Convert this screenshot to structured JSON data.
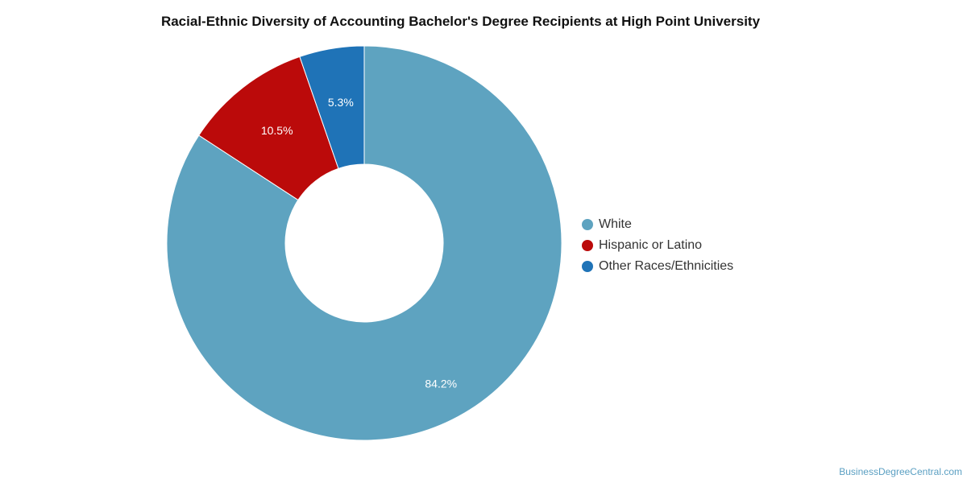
{
  "chart_data": {
    "type": "pie",
    "variant": "donut",
    "title": "Racial-Ethnic Diversity of Accounting Bachelor's Degree Recipients at High Point University",
    "categories": [
      "White",
      "Hispanic or Latino",
      "Other Races/Ethnicities"
    ],
    "values": [
      84.2,
      10.5,
      5.3
    ],
    "value_labels": [
      "84.2%",
      "10.5%",
      "5.3%"
    ],
    "colors": [
      "#5ea3c0",
      "#bb0a0a",
      "#1f73b7"
    ],
    "legend_position": "right"
  },
  "watermark": "BusinessDegreeCentral.com"
}
